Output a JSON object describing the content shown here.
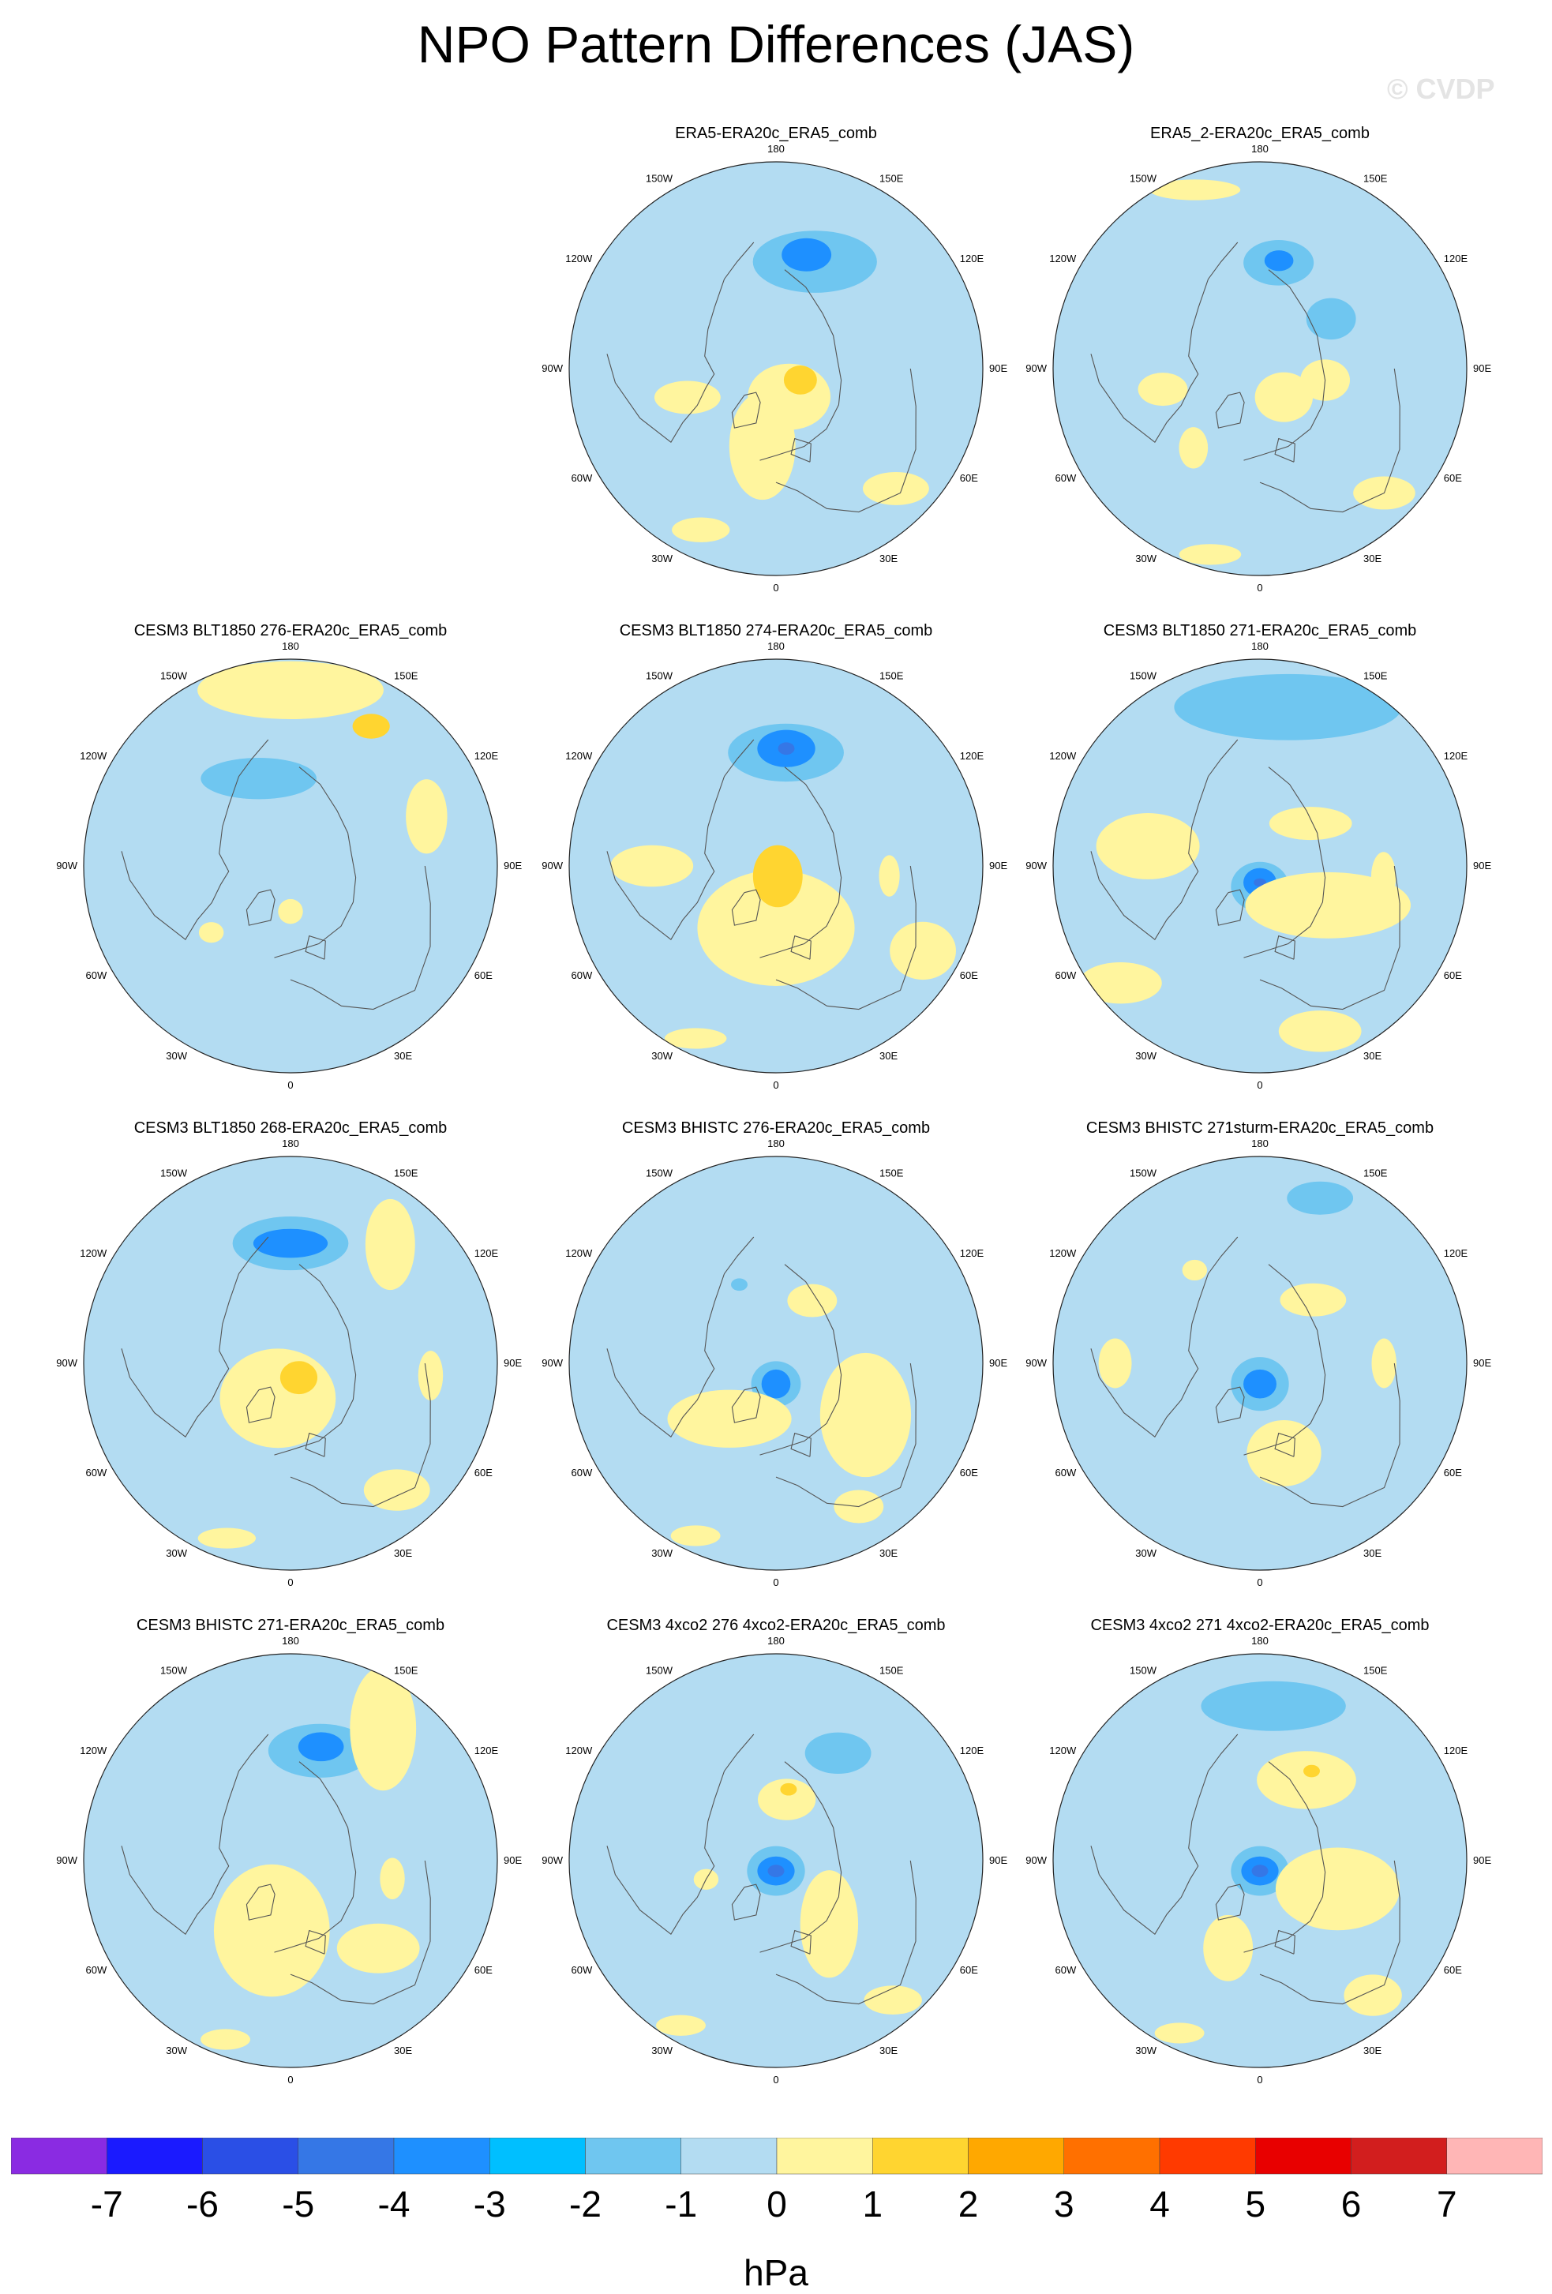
{
  "title": "NPO Pattern Differences (JAS)",
  "watermark": "© CVDP",
  "lon_labels": [
    "180",
    "150E",
    "120E",
    "90E",
    "60E",
    "30E",
    "0",
    "30W",
    "60W",
    "90W",
    "120W",
    "150W"
  ],
  "panels": [
    {
      "title": "ERA5-ERA20c_ERA5_comb",
      "row": 0,
      "col": 1,
      "features": [
        {
          "lon": 160,
          "r": 0.55,
          "rx": 0.3,
          "ry": 0.15,
          "level": -2
        },
        {
          "lon": 165,
          "r": 0.57,
          "rx": 0.12,
          "ry": 0.08,
          "level": -3
        },
        {
          "lon": 25,
          "r": 0.15,
          "rx": 0.2,
          "ry": 0.16,
          "level": 1
        },
        {
          "lon": -10,
          "r": 0.38,
          "rx": 0.16,
          "ry": 0.26,
          "level": 1
        },
        {
          "lon": 65,
          "r": 0.13,
          "rx": 0.08,
          "ry": 0.07,
          "level": 2
        },
        {
          "lon": -72,
          "r": 0.45,
          "rx": 0.16,
          "ry": 0.08,
          "level": 1
        },
        {
          "lon": -25,
          "r": 0.86,
          "rx": 0.14,
          "ry": 0.06,
          "level": 1
        },
        {
          "lon": 45,
          "r": 0.82,
          "rx": 0.16,
          "ry": 0.08,
          "level": 1
        }
      ]
    },
    {
      "title": "ERA5_2-ERA20c_ERA5_comb",
      "row": 0,
      "col": 2,
      "features": [
        {
          "lon": 170,
          "r": 0.52,
          "rx": 0.17,
          "ry": 0.11,
          "level": -2
        },
        {
          "lon": 170,
          "r": 0.53,
          "rx": 0.07,
          "ry": 0.05,
          "level": -3
        },
        {
          "lon": 125,
          "r": 0.42,
          "rx": 0.12,
          "ry": 0.1,
          "level": -2
        },
        {
          "lon": -160,
          "r": 0.92,
          "rx": 0.22,
          "ry": 0.05,
          "level": 1
        },
        {
          "lon": 40,
          "r": 0.18,
          "rx": 0.14,
          "ry": 0.12,
          "level": 1
        },
        {
          "lon": -78,
          "r": 0.48,
          "rx": 0.12,
          "ry": 0.08,
          "level": 1
        },
        {
          "lon": -40,
          "r": 0.5,
          "rx": 0.07,
          "ry": 0.1,
          "level": 1
        },
        {
          "lon": 80,
          "r": 0.32,
          "rx": 0.12,
          "ry": 0.1,
          "level": 1
        },
        {
          "lon": 45,
          "r": 0.85,
          "rx": 0.15,
          "ry": 0.08,
          "level": 1
        },
        {
          "lon": -15,
          "r": 0.93,
          "rx": 0.15,
          "ry": 0.05,
          "level": 1
        }
      ]
    },
    {
      "title": "CESM3 BLT1850 276-ERA20c_ERA5_comb",
      "row": 1,
      "col": 0,
      "features": [
        {
          "lon": 180,
          "r": 0.85,
          "rx": 0.45,
          "ry": 0.14,
          "level": 1
        },
        {
          "lon": 150,
          "r": 0.78,
          "rx": 0.09,
          "ry": 0.06,
          "level": 2
        },
        {
          "lon": -160,
          "r": 0.45,
          "rx": 0.28,
          "ry": 0.1,
          "level": -2
        },
        {
          "lon": 110,
          "r": 0.7,
          "rx": 0.1,
          "ry": 0.18,
          "level": 1
        },
        {
          "lon": 0,
          "r": 0.22,
          "rx": 0.06,
          "ry": 0.06,
          "level": 1
        },
        {
          "lon": -50,
          "r": 0.5,
          "rx": 0.06,
          "ry": 0.05,
          "level": 1
        }
      ]
    },
    {
      "title": "CESM3 BLT1850 274-ERA20c_ERA5_comb",
      "row": 1,
      "col": 1,
      "features": [
        {
          "lon": 175,
          "r": 0.55,
          "rx": 0.28,
          "ry": 0.14,
          "level": -2
        },
        {
          "lon": 175,
          "r": 0.57,
          "rx": 0.14,
          "ry": 0.09,
          "level": -3
        },
        {
          "lon": 175,
          "r": 0.57,
          "rx": 0.04,
          "ry": 0.03,
          "level": -4
        },
        {
          "lon": 0,
          "r": 0.3,
          "rx": 0.38,
          "ry": 0.28,
          "level": 1
        },
        {
          "lon": 10,
          "r": 0.05,
          "rx": 0.12,
          "ry": 0.15,
          "level": 2
        },
        {
          "lon": -90,
          "r": 0.6,
          "rx": 0.2,
          "ry": 0.1,
          "level": 1
        },
        {
          "lon": 60,
          "r": 0.82,
          "rx": 0.16,
          "ry": 0.14,
          "level": 1
        },
        {
          "lon": 85,
          "r": 0.55,
          "rx": 0.05,
          "ry": 0.1,
          "level": 1
        },
        {
          "lon": -25,
          "r": 0.92,
          "rx": 0.15,
          "ry": 0.05,
          "level": 1
        }
      ]
    },
    {
      "title": "CESM3 BLT1850 271-ERA20c_ERA5_comb",
      "row": 1,
      "col": 2,
      "features": [
        {
          "lon": 170,
          "r": 0.78,
          "rx": 0.55,
          "ry": 0.16,
          "level": -2
        },
        {
          "lon": 0,
          "r": 0.1,
          "rx": 0.14,
          "ry": 0.12,
          "level": -2
        },
        {
          "lon": 0,
          "r": 0.08,
          "rx": 0.08,
          "ry": 0.07,
          "level": -3
        },
        {
          "lon": 0,
          "r": 0.08,
          "rx": 0.03,
          "ry": 0.02,
          "level": -4
        },
        {
          "lon": -100,
          "r": 0.55,
          "rx": 0.25,
          "ry": 0.16,
          "level": 1
        },
        {
          "lon": 60,
          "r": 0.38,
          "rx": 0.4,
          "ry": 0.16,
          "level": 1
        },
        {
          "lon": -50,
          "r": 0.88,
          "rx": 0.2,
          "ry": 0.1,
          "level": 1
        },
        {
          "lon": 20,
          "r": 0.85,
          "rx": 0.2,
          "ry": 0.1,
          "level": 1
        },
        {
          "lon": 130,
          "r": 0.32,
          "rx": 0.2,
          "ry": 0.08,
          "level": 1
        },
        {
          "lon": 85,
          "r": 0.6,
          "rx": 0.06,
          "ry": 0.12,
          "level": 1
        }
      ]
    },
    {
      "title": "CESM3 BLT1850 268-ERA20c_ERA5_comb",
      "row": 2,
      "col": 0,
      "features": [
        {
          "lon": 180,
          "r": 0.58,
          "rx": 0.28,
          "ry": 0.13,
          "level": -2
        },
        {
          "lon": 180,
          "r": 0.58,
          "rx": 0.18,
          "ry": 0.07,
          "level": -3
        },
        {
          "lon": 140,
          "r": 0.75,
          "rx": 0.12,
          "ry": 0.22,
          "level": 1
        },
        {
          "lon": -20,
          "r": 0.18,
          "rx": 0.28,
          "ry": 0.24,
          "level": 1
        },
        {
          "lon": 30,
          "r": 0.08,
          "rx": 0.09,
          "ry": 0.08,
          "level": 2
        },
        {
          "lon": 85,
          "r": 0.68,
          "rx": 0.06,
          "ry": 0.12,
          "level": 1
        },
        {
          "lon": 40,
          "r": 0.8,
          "rx": 0.16,
          "ry": 0.1,
          "level": 1
        },
        {
          "lon": -20,
          "r": 0.9,
          "rx": 0.14,
          "ry": 0.05,
          "level": 1
        }
      ]
    },
    {
      "title": "CESM3 BHISTC 276-ERA20c_ERA5_comb",
      "row": 2,
      "col": 1,
      "features": [
        {
          "lon": 150,
          "r": 0.35,
          "rx": 0.12,
          "ry": 0.08,
          "level": 1
        },
        {
          "lon": 0,
          "r": 0.1,
          "rx": 0.12,
          "ry": 0.11,
          "level": -2
        },
        {
          "lon": 0,
          "r": 0.1,
          "rx": 0.07,
          "ry": 0.07,
          "level": -3
        },
        {
          "lon": -40,
          "r": 0.35,
          "rx": 0.3,
          "ry": 0.14,
          "level": 1
        },
        {
          "lon": 60,
          "r": 0.5,
          "rx": 0.22,
          "ry": 0.3,
          "level": 1
        },
        {
          "lon": -155,
          "r": 0.42,
          "rx": 0.04,
          "ry": 0.03,
          "level": -2
        },
        {
          "lon": 30,
          "r": 0.8,
          "rx": 0.12,
          "ry": 0.08,
          "level": 1
        },
        {
          "lon": -25,
          "r": 0.92,
          "rx": 0.12,
          "ry": 0.05,
          "level": 1
        }
      ]
    },
    {
      "title": "CESM3 BHISTC 271sturm-ERA20c_ERA5_comb",
      "row": 2,
      "col": 2,
      "features": [
        {
          "lon": 160,
          "r": 0.85,
          "rx": 0.16,
          "ry": 0.08,
          "level": -2
        },
        {
          "lon": 0,
          "r": 0.1,
          "rx": 0.14,
          "ry": 0.13,
          "level": -2
        },
        {
          "lon": 0,
          "r": 0.1,
          "rx": 0.08,
          "ry": 0.07,
          "level": -3
        },
        {
          "lon": 140,
          "r": 0.4,
          "rx": 0.16,
          "ry": 0.08,
          "level": 1
        },
        {
          "lon": 15,
          "r": 0.45,
          "rx": 0.18,
          "ry": 0.16,
          "level": 1
        },
        {
          "lon": -90,
          "r": 0.7,
          "rx": 0.08,
          "ry": 0.12,
          "level": 1
        },
        {
          "lon": 90,
          "r": 0.6,
          "rx": 0.06,
          "ry": 0.12,
          "level": 1
        },
        {
          "lon": -145,
          "r": 0.55,
          "rx": 0.06,
          "ry": 0.05,
          "level": 1
        }
      ]
    },
    {
      "title": "CESM3 BHISTC 271-ERA20c_ERA5_comb",
      "row": 3,
      "col": 0,
      "features": [
        {
          "lon": 165,
          "r": 0.55,
          "rx": 0.25,
          "ry": 0.13,
          "level": -2
        },
        {
          "lon": 165,
          "r": 0.57,
          "rx": 0.11,
          "ry": 0.07,
          "level": -3
        },
        {
          "lon": 145,
          "r": 0.78,
          "rx": 0.16,
          "ry": 0.3,
          "level": 1
        },
        {
          "lon": -15,
          "r": 0.35,
          "rx": 0.28,
          "ry": 0.32,
          "level": 1
        },
        {
          "lon": 45,
          "r": 0.6,
          "rx": 0.2,
          "ry": 0.12,
          "level": 1
        },
        {
          "lon": 80,
          "r": 0.5,
          "rx": 0.06,
          "ry": 0.1,
          "level": 1
        },
        {
          "lon": -20,
          "r": 0.92,
          "rx": 0.12,
          "ry": 0.05,
          "level": 1
        }
      ]
    },
    {
      "title": "CESM3 4xco2 276 4xco2-ERA20c_ERA5_comb",
      "row": 3,
      "col": 1,
      "features": [
        {
          "lon": 150,
          "r": 0.6,
          "rx": 0.16,
          "ry": 0.1,
          "level": -2
        },
        {
          "lon": 170,
          "r": 0.3,
          "rx": 0.14,
          "ry": 0.1,
          "level": 1
        },
        {
          "lon": 170,
          "r": 0.35,
          "rx": 0.04,
          "ry": 0.03,
          "level": 2
        },
        {
          "lon": 0,
          "r": 0.05,
          "rx": 0.14,
          "ry": 0.12,
          "level": -2
        },
        {
          "lon": 0,
          "r": 0.05,
          "rx": 0.09,
          "ry": 0.07,
          "level": -3
        },
        {
          "lon": 0,
          "r": 0.05,
          "rx": 0.04,
          "ry": 0.03,
          "level": -4
        },
        {
          "lon": 40,
          "r": 0.4,
          "rx": 0.14,
          "ry": 0.26,
          "level": 1
        },
        {
          "lon": -75,
          "r": 0.35,
          "rx": 0.06,
          "ry": 0.05,
          "level": 1
        },
        {
          "lon": 40,
          "r": 0.88,
          "rx": 0.14,
          "ry": 0.07,
          "level": 1
        },
        {
          "lon": -30,
          "r": 0.92,
          "rx": 0.12,
          "ry": 0.05,
          "level": 1
        }
      ]
    },
    {
      "title": "CESM3 4xco2 271 4xco2-ERA20c_ERA5_comb",
      "row": 3,
      "col": 2,
      "features": [
        {
          "lon": 175,
          "r": 0.75,
          "rx": 0.35,
          "ry": 0.12,
          "level": -2
        },
        {
          "lon": 150,
          "r": 0.45,
          "rx": 0.24,
          "ry": 0.14,
          "level": 1
        },
        {
          "lon": 150,
          "r": 0.5,
          "rx": 0.04,
          "ry": 0.03,
          "level": 2
        },
        {
          "lon": 0,
          "r": 0.05,
          "rx": 0.14,
          "ry": 0.12,
          "level": -2
        },
        {
          "lon": 0,
          "r": 0.05,
          "rx": 0.09,
          "ry": 0.07,
          "level": -3
        },
        {
          "lon": 0,
          "r": 0.05,
          "rx": 0.04,
          "ry": 0.03,
          "level": -4
        },
        {
          "lon": 70,
          "r": 0.4,
          "rx": 0.3,
          "ry": 0.2,
          "level": 1
        },
        {
          "lon": -20,
          "r": 0.45,
          "rx": 0.12,
          "ry": 0.16,
          "level": 1
        },
        {
          "lon": 40,
          "r": 0.85,
          "rx": 0.14,
          "ry": 0.1,
          "level": 1
        },
        {
          "lon": -25,
          "r": 0.92,
          "rx": 0.12,
          "ry": 0.05,
          "level": 1
        }
      ]
    }
  ],
  "colorbar": {
    "unit": "hPa",
    "colors": [
      "#8a2be2",
      "#1a1aff",
      "#2a4fe6",
      "#3577e6",
      "#1e90ff",
      "#00bfff",
      "#6fc6f0",
      "#b3dcf2",
      "#fff59e",
      "#ffd530",
      "#ffa800",
      "#ff7000",
      "#ff3a00",
      "#e80000",
      "#d21e1e",
      "#ffb6b6"
    ],
    "ticks": [
      "-7",
      "-6",
      "-5",
      "-4",
      "-3",
      "-2",
      "-1",
      "0",
      "1",
      "2",
      "3",
      "4",
      "5",
      "6",
      "7"
    ]
  },
  "level_colors": {
    "-4": "#3577e6",
    "-3": "#1e90ff",
    "-2": "#6fc6f0",
    "-1": "#b3dcf2",
    "1": "#fff59e",
    "2": "#ffd530"
  },
  "background_color": "#b3dcf2"
}
